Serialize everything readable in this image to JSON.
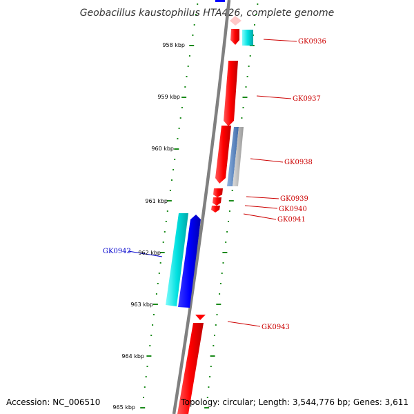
{
  "title": "Geobacillus kaustophilus HTA426, complete genome",
  "accession": "Accession: NC_006510",
  "summary": "Topology: circular; Length: 3,544,776 bp; Genes: 3,611",
  "colors": {
    "forward_gene": "#ff0000",
    "reverse_gene": "#0000ff",
    "forward_pseudo_or_rna": "#00cccc",
    "other_feature": "#6a8fc8",
    "grey_feature": "#aaaaaa",
    "tick": "#1a8a1a",
    "backbone": "#808080",
    "label_forward": "#cc0000",
    "label_reverse": "#0000cc"
  },
  "scale_labels": [
    "958 kbp",
    "959 kbp",
    "960 kbp",
    "961 kbp",
    "962 kbp",
    "963 kbp",
    "964 kbp",
    "965 kbp"
  ],
  "gene_labels": [
    {
      "text": "GK0936",
      "strand": "forward"
    },
    {
      "text": "GK0937",
      "strand": "forward"
    },
    {
      "text": "GK0938",
      "strand": "forward"
    },
    {
      "text": "GK0939",
      "strand": "forward"
    },
    {
      "text": "GK0940",
      "strand": "forward"
    },
    {
      "text": "GK0941",
      "strand": "forward"
    },
    {
      "text": "GK0942",
      "strand": "reverse"
    },
    {
      "text": "GK0943",
      "strand": "forward"
    }
  ]
}
